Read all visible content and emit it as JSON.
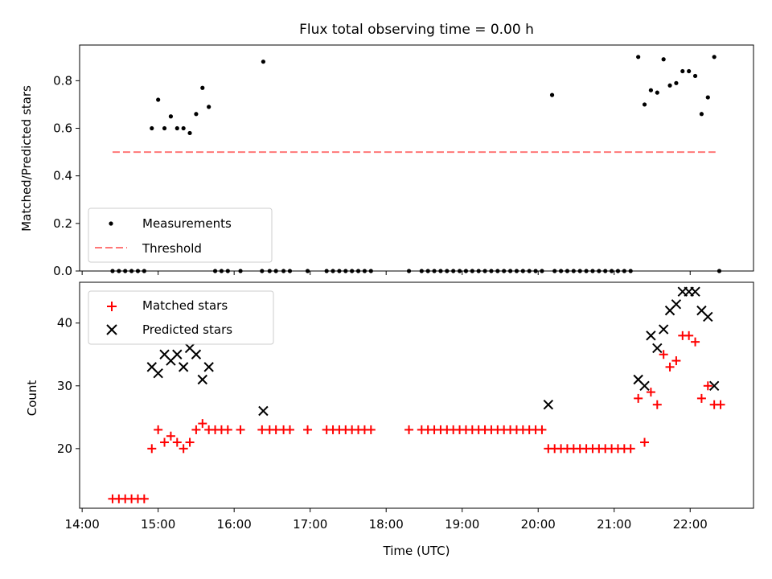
{
  "chart_data": [
    {
      "type": "scatter",
      "title": "Flux total observing time = 0.00 h",
      "xlabel": "",
      "ylabel": "Matched/Predicted stars",
      "xlim": [
        "13:58",
        "22:50"
      ],
      "ylim": [
        0.0,
        0.95
      ],
      "yticks": [
        0.0,
        0.2,
        0.4,
        0.6,
        0.8
      ],
      "ytick_labels": [
        "0.0",
        "0.2",
        "0.4",
        "0.6",
        "0.8"
      ],
      "grid": false,
      "legend_position": "lower-left",
      "legend": {
        "measurements": "Measurements",
        "threshold": "Threshold"
      },
      "series": [
        {
          "name": "Measurements",
          "kind": "scatter",
          "color": "#000000",
          "points": [
            [
              "14:24",
              0
            ],
            [
              "14:29",
              0
            ],
            [
              "14:34",
              0
            ],
            [
              "14:39",
              0
            ],
            [
              "14:44",
              0
            ],
            [
              "14:49",
              0
            ],
            [
              "14:55",
              0.6
            ],
            [
              "15:00",
              0.72
            ],
            [
              "15:05",
              0.6
            ],
            [
              "15:10",
              0.65
            ],
            [
              "15:15",
              0.6
            ],
            [
              "15:20",
              0.6
            ],
            [
              "15:25",
              0.58
            ],
            [
              "15:30",
              0.66
            ],
            [
              "15:35",
              0.77
            ],
            [
              "15:40",
              0.69
            ],
            [
              "15:45",
              0
            ],
            [
              "15:50",
              0
            ],
            [
              "15:55",
              0
            ],
            [
              "16:05",
              0
            ],
            [
              "16:23",
              0.88
            ],
            [
              "16:22",
              0
            ],
            [
              "16:28",
              0
            ],
            [
              "16:33",
              0
            ],
            [
              "16:39",
              0
            ],
            [
              "16:44",
              0
            ],
            [
              "16:58",
              0
            ],
            [
              "17:13",
              0
            ],
            [
              "17:18",
              0
            ],
            [
              "17:23",
              0
            ],
            [
              "17:28",
              0
            ],
            [
              "17:33",
              0
            ],
            [
              "17:38",
              0
            ],
            [
              "17:43",
              0
            ],
            [
              "17:48",
              0
            ],
            [
              "18:18",
              0
            ],
            [
              "18:28",
              0
            ],
            [
              "18:33",
              0
            ],
            [
              "18:38",
              0
            ],
            [
              "18:43",
              0
            ],
            [
              "18:48",
              0
            ],
            [
              "18:53",
              0
            ],
            [
              "18:58",
              0
            ],
            [
              "19:03",
              0
            ],
            [
              "19:08",
              0
            ],
            [
              "19:13",
              0
            ],
            [
              "19:18",
              0
            ],
            [
              "19:23",
              0
            ],
            [
              "19:28",
              0
            ],
            [
              "19:33",
              0
            ],
            [
              "19:38",
              0
            ],
            [
              "19:43",
              0
            ],
            [
              "19:48",
              0
            ],
            [
              "19:53",
              0
            ],
            [
              "19:58",
              0
            ],
            [
              "20:03",
              0
            ],
            [
              "20:11",
              0.74
            ],
            [
              "20:13",
              0
            ],
            [
              "20:18",
              0
            ],
            [
              "20:23",
              0
            ],
            [
              "20:28",
              0
            ],
            [
              "20:33",
              0
            ],
            [
              "20:38",
              0
            ],
            [
              "20:43",
              0
            ],
            [
              "20:48",
              0
            ],
            [
              "20:53",
              0
            ],
            [
              "20:58",
              0
            ],
            [
              "21:03",
              0
            ],
            [
              "21:08",
              0
            ],
            [
              "21:13",
              0
            ],
            [
              "21:19",
              0.9
            ],
            [
              "21:24",
              0.7
            ],
            [
              "21:29",
              0.76
            ],
            [
              "21:34",
              0.75
            ],
            [
              "21:39",
              0.89
            ],
            [
              "21:44",
              0.78
            ],
            [
              "21:49",
              0.79
            ],
            [
              "21:54",
              0.84
            ],
            [
              "21:59",
              0.84
            ],
            [
              "22:04",
              0.82
            ],
            [
              "22:09",
              0.66
            ],
            [
              "22:14",
              0.73
            ],
            [
              "22:19",
              0.9
            ],
            [
              "22:23",
              0
            ]
          ]
        },
        {
          "name": "Threshold",
          "kind": "line",
          "style": "dashed",
          "color": "#ff7777",
          "points": [
            [
              "14:24",
              0.5
            ],
            [
              "22:20",
              0.5
            ]
          ]
        }
      ]
    },
    {
      "type": "scatter",
      "title": "",
      "xlabel": "Time (UTC)",
      "ylabel": "Count",
      "xlim": [
        "13:58",
        "22:50"
      ],
      "ylim": [
        10.5,
        46.5
      ],
      "xticks": [
        "14:00",
        "15:00",
        "16:00",
        "17:00",
        "18:00",
        "19:00",
        "20:00",
        "21:00",
        "22:00"
      ],
      "xtick_labels": [
        "14:00",
        "15:00",
        "16:00",
        "17:00",
        "18:00",
        "19:00",
        "20:00",
        "21:00",
        "22:00"
      ],
      "yticks": [
        20,
        30,
        40
      ],
      "ytick_labels": [
        "20",
        "30",
        "40"
      ],
      "grid": false,
      "legend_position": "upper-left",
      "legend": {
        "matched": "Matched stars",
        "predicted": "Predicted stars"
      },
      "series": [
        {
          "name": "Matched stars",
          "marker": "plus",
          "color": "#ff0000",
          "points": [
            [
              "14:24",
              12
            ],
            [
              "14:29",
              12
            ],
            [
              "14:34",
              12
            ],
            [
              "14:39",
              12
            ],
            [
              "14:44",
              12
            ],
            [
              "14:49",
              12
            ],
            [
              "14:55",
              20
            ],
            [
              "15:00",
              23
            ],
            [
              "15:05",
              21
            ],
            [
              "15:10",
              22
            ],
            [
              "15:15",
              21
            ],
            [
              "15:20",
              20
            ],
            [
              "15:25",
              21
            ],
            [
              "15:30",
              23
            ],
            [
              "15:35",
              24
            ],
            [
              "15:40",
              23
            ],
            [
              "15:45",
              23
            ],
            [
              "15:50",
              23
            ],
            [
              "15:55",
              23
            ],
            [
              "16:05",
              23
            ],
            [
              "16:22",
              23
            ],
            [
              "16:28",
              23
            ],
            [
              "16:33",
              23
            ],
            [
              "16:39",
              23
            ],
            [
              "16:44",
              23
            ],
            [
              "16:58",
              23
            ],
            [
              "17:13",
              23
            ],
            [
              "17:18",
              23
            ],
            [
              "17:23",
              23
            ],
            [
              "17:28",
              23
            ],
            [
              "17:33",
              23
            ],
            [
              "17:38",
              23
            ],
            [
              "17:43",
              23
            ],
            [
              "17:48",
              23
            ],
            [
              "18:18",
              23
            ],
            [
              "18:28",
              23
            ],
            [
              "18:33",
              23
            ],
            [
              "18:38",
              23
            ],
            [
              "18:43",
              23
            ],
            [
              "18:48",
              23
            ],
            [
              "18:53",
              23
            ],
            [
              "18:58",
              23
            ],
            [
              "19:03",
              23
            ],
            [
              "19:08",
              23
            ],
            [
              "19:13",
              23
            ],
            [
              "19:18",
              23
            ],
            [
              "19:23",
              23
            ],
            [
              "19:28",
              23
            ],
            [
              "19:33",
              23
            ],
            [
              "19:38",
              23
            ],
            [
              "19:43",
              23
            ],
            [
              "19:48",
              23
            ],
            [
              "19:53",
              23
            ],
            [
              "19:58",
              23
            ],
            [
              "20:03",
              23
            ],
            [
              "20:08",
              20
            ],
            [
              "20:13",
              20
            ],
            [
              "20:18",
              20
            ],
            [
              "20:23",
              20
            ],
            [
              "20:28",
              20
            ],
            [
              "20:33",
              20
            ],
            [
              "20:38",
              20
            ],
            [
              "20:43",
              20
            ],
            [
              "20:48",
              20
            ],
            [
              "20:53",
              20
            ],
            [
              "20:58",
              20
            ],
            [
              "21:03",
              20
            ],
            [
              "21:08",
              20
            ],
            [
              "21:13",
              20
            ],
            [
              "21:19",
              28
            ],
            [
              "21:24",
              21
            ],
            [
              "21:29",
              29
            ],
            [
              "21:34",
              27
            ],
            [
              "21:39",
              35
            ],
            [
              "21:44",
              33
            ],
            [
              "21:49",
              34
            ],
            [
              "21:54",
              38
            ],
            [
              "21:59",
              38
            ],
            [
              "22:04",
              37
            ],
            [
              "22:09",
              28
            ],
            [
              "22:14",
              30
            ],
            [
              "22:19",
              27
            ],
            [
              "22:24",
              27
            ]
          ]
        },
        {
          "name": "Predicted stars",
          "marker": "x",
          "color": "#000000",
          "points": [
            [
              "14:55",
              33
            ],
            [
              "15:00",
              32
            ],
            [
              "15:05",
              35
            ],
            [
              "15:10",
              34
            ],
            [
              "15:15",
              35
            ],
            [
              "15:20",
              33
            ],
            [
              "15:25",
              36
            ],
            [
              "15:30",
              35
            ],
            [
              "15:35",
              31
            ],
            [
              "15:40",
              33
            ],
            [
              "16:23",
              26
            ],
            [
              "20:08",
              27
            ],
            [
              "21:19",
              31
            ],
            [
              "21:24",
              30
            ],
            [
              "21:29",
              38
            ],
            [
              "21:34",
              36
            ],
            [
              "21:39",
              39
            ],
            [
              "21:44",
              42
            ],
            [
              "21:49",
              43
            ],
            [
              "21:54",
              45
            ],
            [
              "21:59",
              45
            ],
            [
              "22:04",
              45
            ],
            [
              "22:09",
              42
            ],
            [
              "22:14",
              41
            ],
            [
              "22:19",
              30
            ]
          ]
        }
      ]
    }
  ]
}
